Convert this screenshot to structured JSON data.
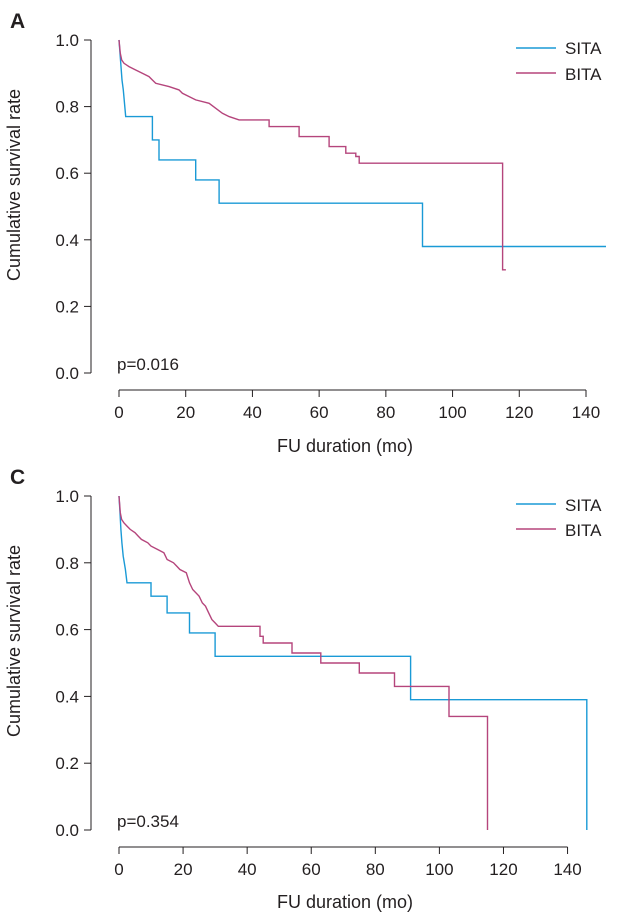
{
  "chart_data": [
    {
      "panel_label": "A",
      "type": "line",
      "xlabel": "FU duration (mo)",
      "ylabel": "Cumulative survival rate",
      "xlim": [
        0,
        146
      ],
      "ylim": [
        0,
        1.0
      ],
      "xticks": [
        "0",
        "20",
        "40",
        "60",
        "80",
        "100",
        "120",
        "140"
      ],
      "yticks": [
        "0.0",
        "0.2",
        "0.4",
        "0.6",
        "0.8",
        "1.0"
      ],
      "annotation": "p=0.016",
      "legend_position": "top-right",
      "series": [
        {
          "name": "SITA",
          "color": "#1a9ad6",
          "points": [
            [
              0,
              1.0
            ],
            [
              0.3,
              0.96
            ],
            [
              0.6,
              0.92
            ],
            [
              0.9,
              0.88
            ],
            [
              1.3,
              0.85
            ],
            [
              2,
              0.77
            ],
            [
              10,
              0.77
            ],
            [
              10,
              0.7
            ],
            [
              12,
              0.7
            ],
            [
              12,
              0.64
            ],
            [
              23,
              0.64
            ],
            [
              23,
              0.58
            ],
            [
              30,
              0.58
            ],
            [
              30,
              0.51
            ],
            [
              91,
              0.51
            ],
            [
              91,
              0.38
            ],
            [
              146,
              0.38
            ]
          ]
        },
        {
          "name": "BITA",
          "color": "#b5457c",
          "points": [
            [
              0,
              1.0
            ],
            [
              0.4,
              0.96
            ],
            [
              0.8,
              0.94
            ],
            [
              1.5,
              0.93
            ],
            [
              3,
              0.92
            ],
            [
              5,
              0.91
            ],
            [
              7,
              0.9
            ],
            [
              9,
              0.89
            ],
            [
              10,
              0.88
            ],
            [
              11,
              0.87
            ],
            [
              15,
              0.86
            ],
            [
              18,
              0.85
            ],
            [
              19,
              0.84
            ],
            [
              23,
              0.82
            ],
            [
              27,
              0.81
            ],
            [
              31,
              0.78
            ],
            [
              33,
              0.77
            ],
            [
              36,
              0.76
            ],
            [
              45,
              0.76
            ],
            [
              45,
              0.74
            ],
            [
              54,
              0.74
            ],
            [
              54,
              0.71
            ],
            [
              63,
              0.71
            ],
            [
              63,
              0.68
            ],
            [
              68,
              0.68
            ],
            [
              68,
              0.66
            ],
            [
              71,
              0.66
            ],
            [
              71,
              0.65
            ],
            [
              72,
              0.65
            ],
            [
              72,
              0.63
            ],
            [
              115,
              0.63
            ],
            [
              115,
              0.31
            ],
            [
              116,
              0.31
            ]
          ]
        }
      ]
    },
    {
      "panel_label": "C",
      "type": "line",
      "xlabel": "FU duration (mo)",
      "ylabel": "Cumulative survival rate",
      "xlim": [
        0,
        152
      ],
      "ylim": [
        0,
        1.0
      ],
      "xticks": [
        "0",
        "20",
        "40",
        "60",
        "80",
        "100",
        "120",
        "140"
      ],
      "yticks": [
        "0.0",
        "0.2",
        "0.4",
        "0.6",
        "0.8",
        "1.0"
      ],
      "annotation": "p=0.354",
      "legend_position": "top-right",
      "series": [
        {
          "name": "SITA",
          "color": "#1a9ad6",
          "points": [
            [
              0,
              1.0
            ],
            [
              0.3,
              0.95
            ],
            [
              0.6,
              0.9
            ],
            [
              0.9,
              0.86
            ],
            [
              1.3,
              0.82
            ],
            [
              2,
              0.78
            ],
            [
              2.5,
              0.74
            ],
            [
              10,
              0.74
            ],
            [
              10,
              0.7
            ],
            [
              15,
              0.7
            ],
            [
              15,
              0.65
            ],
            [
              22,
              0.65
            ],
            [
              22,
              0.59
            ],
            [
              30,
              0.59
            ],
            [
              30,
              0.52
            ],
            [
              91,
              0.52
            ],
            [
              91,
              0.39
            ],
            [
              146,
              0.39
            ],
            [
              146,
              0.0
            ]
          ]
        },
        {
          "name": "BITA",
          "color": "#b5457c",
          "points": [
            [
              0,
              1.0
            ],
            [
              0.4,
              0.95
            ],
            [
              0.8,
              0.93
            ],
            [
              1.5,
              0.92
            ],
            [
              2.5,
              0.91
            ],
            [
              3.5,
              0.9
            ],
            [
              5,
              0.89
            ],
            [
              6,
              0.88
            ],
            [
              7,
              0.87
            ],
            [
              9,
              0.86
            ],
            [
              10,
              0.85
            ],
            [
              12,
              0.84
            ],
            [
              14,
              0.83
            ],
            [
              15,
              0.81
            ],
            [
              17,
              0.8
            ],
            [
              18,
              0.79
            ],
            [
              19,
              0.78
            ],
            [
              21,
              0.77
            ],
            [
              22,
              0.74
            ],
            [
              23,
              0.72
            ],
            [
              25,
              0.7
            ],
            [
              26,
              0.68
            ],
            [
              27,
              0.67
            ],
            [
              28,
              0.65
            ],
            [
              29,
              0.63
            ],
            [
              30,
              0.62
            ],
            [
              31,
              0.61
            ],
            [
              44,
              0.61
            ],
            [
              44,
              0.58
            ],
            [
              45,
              0.58
            ],
            [
              45,
              0.56
            ],
            [
              54,
              0.56
            ],
            [
              54,
              0.53
            ],
            [
              63,
              0.53
            ],
            [
              63,
              0.5
            ],
            [
              75,
              0.5
            ],
            [
              75,
              0.47
            ],
            [
              86,
              0.47
            ],
            [
              86,
              0.43
            ],
            [
              103,
              0.43
            ],
            [
              103,
              0.34
            ],
            [
              115,
              0.34
            ],
            [
              115,
              0.0
            ]
          ]
        }
      ]
    }
  ]
}
